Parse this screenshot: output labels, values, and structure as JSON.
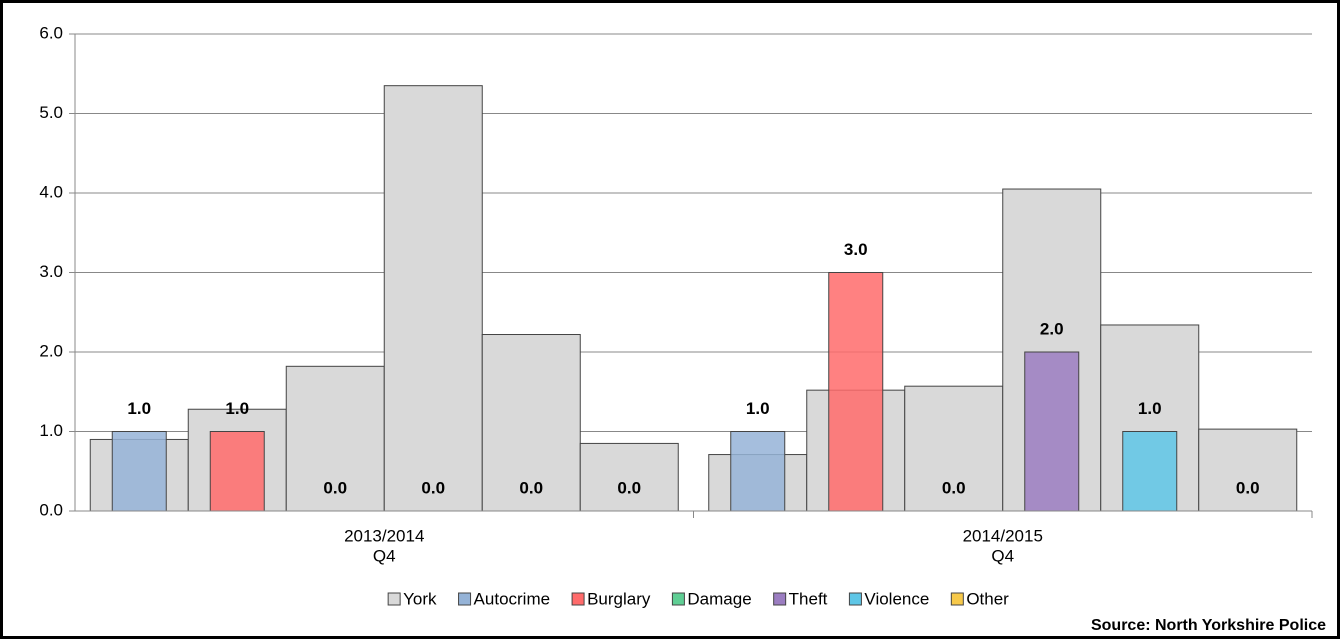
{
  "chart_data": {
    "type": "bar",
    "categories": [
      [
        "2013/2014",
        "Q4"
      ],
      [
        "2014/2015",
        "Q4"
      ]
    ],
    "series": [
      {
        "name": "York",
        "color": "#d9d9d9",
        "values": [
          [
            0.9,
            1.28,
            1.82,
            5.35,
            2.22,
            0.85
          ],
          [
            0.71,
            1.52,
            1.57,
            4.05,
            2.34,
            1.03
          ]
        ]
      },
      {
        "name": "Autocrime",
        "color": "#95b3d7",
        "values": [
          1,
          1
        ],
        "value_labels": [
          "1.0",
          "1.0"
        ]
      },
      {
        "name": "Burglary",
        "color": "#ff6b6b",
        "values": [
          1,
          3
        ],
        "value_labels": [
          "1.0",
          "3.0"
        ]
      },
      {
        "name": "Damage",
        "color": "#5fce94",
        "values": [
          0,
          0
        ],
        "value_labels": [
          "0.0",
          "0.0"
        ]
      },
      {
        "name": "Theft",
        "color": "#9b7dc1",
        "values": [
          0,
          2
        ],
        "value_labels": [
          "0.0",
          "2.0"
        ]
      },
      {
        "name": "Violence",
        "color": "#5ec6e6",
        "values": [
          0,
          1
        ],
        "value_labels": [
          "0.0",
          "1.0"
        ]
      },
      {
        "name": "Other",
        "color": "#f7c94a",
        "values": [
          0,
          0
        ],
        "value_labels": [
          "0.0",
          "0.0"
        ]
      }
    ],
    "ylim": [
      0,
      6
    ],
    "yticks": [
      {
        "value": 0,
        "label": "0.0"
      },
      {
        "value": 1,
        "label": "1.0"
      },
      {
        "value": 2,
        "label": "2.0"
      },
      {
        "value": 3,
        "label": "3.0"
      },
      {
        "value": 4,
        "label": "4.0"
      },
      {
        "value": 5,
        "label": "5.0"
      },
      {
        "value": 6,
        "label": "6.0"
      }
    ],
    "grid": true,
    "source": "Source: North Yorkshire Police"
  }
}
